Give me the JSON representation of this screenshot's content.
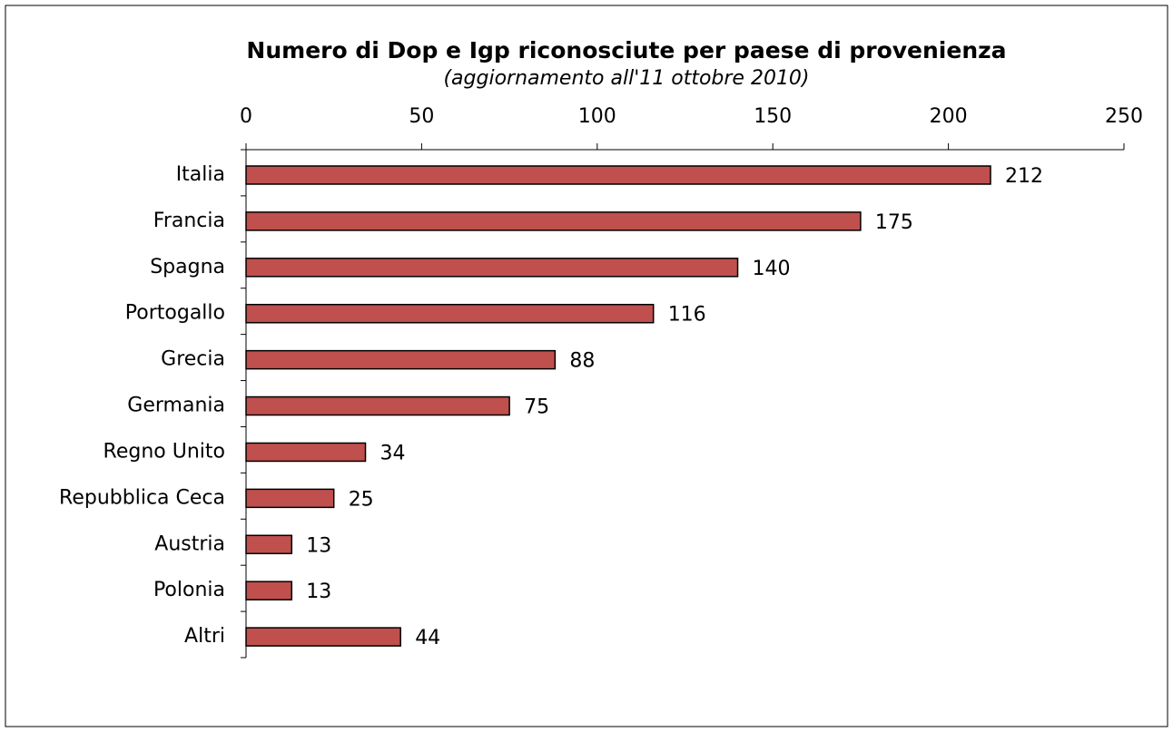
{
  "chart_data": {
    "type": "bar",
    "orientation": "horizontal",
    "title": "Numero di Dop e Igp riconosciute per paese di provenienza",
    "subtitle": "(aggiornamento all'11 ottobre 2010)",
    "categories": [
      "Italia",
      "Francia",
      "Spagna",
      "Portogallo",
      "Grecia",
      "Germania",
      "Regno Unito",
      "Repubblica Ceca",
      "Austria",
      "Polonia",
      "Altri"
    ],
    "values": [
      212,
      175,
      140,
      116,
      88,
      75,
      34,
      25,
      13,
      13,
      44
    ],
    "color": "#c0504d",
    "xlim": [
      0,
      250
    ],
    "xticks": [
      0,
      50,
      100,
      150,
      200,
      250
    ],
    "grid": false
  }
}
